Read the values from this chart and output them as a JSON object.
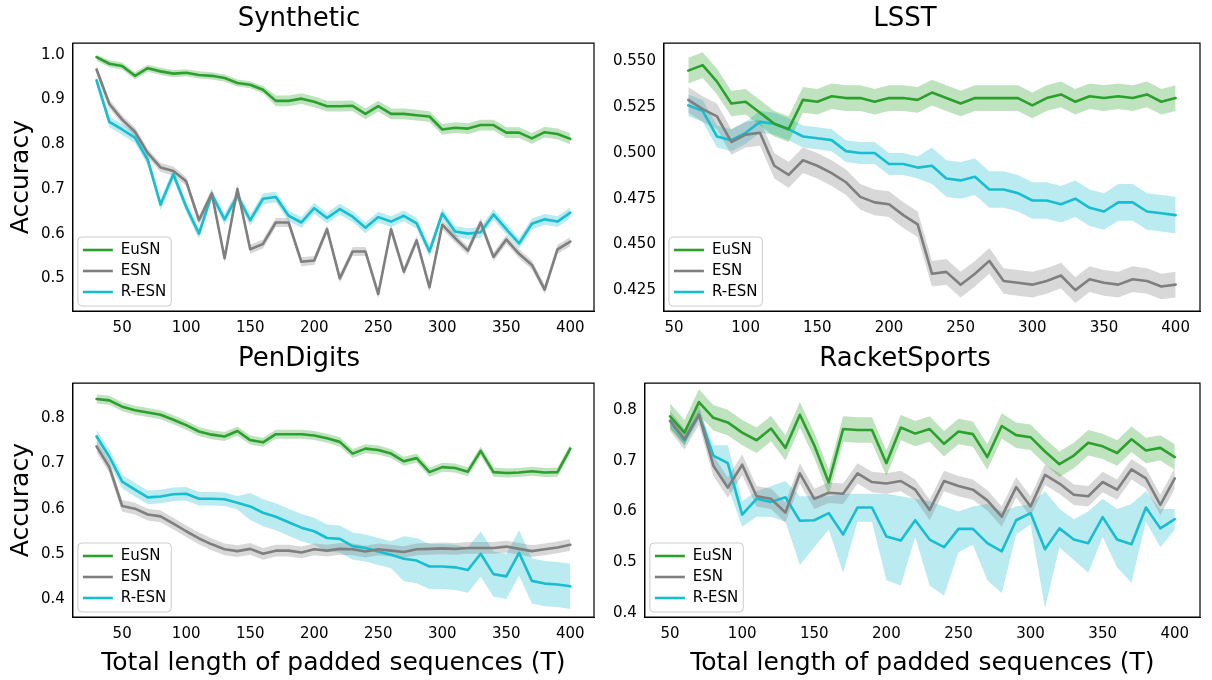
{
  "chart_data": [
    {
      "type": "line",
      "title": "Synthetic",
      "ylabel": "Accuracy",
      "legend": "bottom left",
      "grid": false,
      "marker": "none",
      "line_style": "solid",
      "x": [
        30,
        40,
        50,
        60,
        70,
        80,
        90,
        100,
        110,
        120,
        130,
        140,
        150,
        160,
        170,
        180,
        190,
        200,
        210,
        220,
        230,
        240,
        250,
        260,
        270,
        280,
        290,
        300,
        310,
        320,
        330,
        340,
        350,
        360,
        370,
        380,
        390,
        400
      ],
      "xlim": [
        11.5,
        418.5
      ],
      "xticks": [
        50,
        100,
        150,
        200,
        250,
        300,
        350,
        400
      ],
      "ylim": [
        0.427,
        1.026
      ],
      "yticks": [
        0.5,
        0.6,
        0.7,
        0.8,
        0.9,
        {
          "value": 1,
          "label": "1.0"
        }
      ],
      "series": [
        {
          "name": "EuSN",
          "color": "#2ca02c",
          "values": [
            0.995,
            0.98,
            0.975,
            0.953,
            0.97,
            0.963,
            0.958,
            0.96,
            0.955,
            0.953,
            0.948,
            0.937,
            0.933,
            0.922,
            0.897,
            0.897,
            0.902,
            0.895,
            0.885,
            0.885,
            0.886,
            0.868,
            0.885,
            0.868,
            0.868,
            0.865,
            0.862,
            0.833,
            0.837,
            0.835,
            0.843,
            0.843,
            0.826,
            0.826,
            0.813,
            0.827,
            0.823,
            0.812
          ],
          "lower": [
            0.987,
            0.972,
            0.967,
            0.945,
            0.962,
            0.955,
            0.95,
            0.952,
            0.947,
            0.945,
            0.94,
            0.929,
            0.925,
            0.914,
            0.885,
            0.885,
            0.89,
            0.883,
            0.873,
            0.873,
            0.874,
            0.856,
            0.873,
            0.856,
            0.856,
            0.853,
            0.85,
            0.821,
            0.825,
            0.823,
            0.831,
            0.831,
            0.814,
            0.814,
            0.801,
            0.815,
            0.811,
            0.8
          ],
          "upper": [
            1.0,
            0.988,
            0.983,
            0.961,
            0.978,
            0.971,
            0.966,
            0.968,
            0.963,
            0.961,
            0.956,
            0.945,
            0.941,
            0.93,
            0.909,
            0.909,
            0.914,
            0.907,
            0.897,
            0.897,
            0.898,
            0.88,
            0.897,
            0.88,
            0.88,
            0.877,
            0.874,
            0.845,
            0.849,
            0.847,
            0.855,
            0.855,
            0.838,
            0.838,
            0.825,
            0.839,
            0.835,
            0.824
          ]
        },
        {
          "name": "ESN",
          "color": "#7f7f7f",
          "values": [
            0.967,
            0.89,
            0.855,
            0.828,
            0.78,
            0.748,
            0.74,
            0.717,
            0.63,
            0.69,
            0.545,
            0.7,
            0.565,
            0.577,
            0.625,
            0.625,
            0.537,
            0.54,
            0.61,
            0.5,
            0.56,
            0.56,
            0.465,
            0.61,
            0.515,
            0.585,
            0.48,
            0.62,
            0.59,
            0.562,
            0.625,
            0.548,
            0.587,
            0.555,
            0.53,
            0.475,
            0.565,
            0.582
          ],
          "lower": [
            0.957,
            0.88,
            0.845,
            0.818,
            0.77,
            0.738,
            0.73,
            0.707,
            0.62,
            0.68,
            0.535,
            0.69,
            0.555,
            0.567,
            0.615,
            0.615,
            0.527,
            0.53,
            0.6,
            0.49,
            0.55,
            0.55,
            0.455,
            0.6,
            0.505,
            0.575,
            0.47,
            0.61,
            0.58,
            0.552,
            0.615,
            0.538,
            0.577,
            0.545,
            0.52,
            0.465,
            0.555,
            0.572
          ],
          "upper": [
            0.977,
            0.9,
            0.865,
            0.838,
            0.79,
            0.758,
            0.75,
            0.727,
            0.64,
            0.7,
            0.555,
            0.71,
            0.575,
            0.587,
            0.635,
            0.635,
            0.547,
            0.55,
            0.62,
            0.51,
            0.57,
            0.57,
            0.475,
            0.62,
            0.525,
            0.595,
            0.49,
            0.63,
            0.6,
            0.572,
            0.635,
            0.558,
            0.597,
            0.565,
            0.54,
            0.485,
            0.575,
            0.592
          ]
        },
        {
          "name": "R-ESN",
          "color": "#17becf",
          "values": [
            0.943,
            0.85,
            0.833,
            0.815,
            0.765,
            0.665,
            0.733,
            0.66,
            0.6,
            0.688,
            0.632,
            0.685,
            0.63,
            0.678,
            0.682,
            0.64,
            0.625,
            0.657,
            0.635,
            0.655,
            0.638,
            0.613,
            0.637,
            0.627,
            0.64,
            0.623,
            0.56,
            0.645,
            0.605,
            0.6,
            0.603,
            0.643,
            0.61,
            0.578,
            0.622,
            0.632,
            0.627,
            0.647
          ],
          "lower": [
            0.931,
            0.838,
            0.821,
            0.803,
            0.753,
            0.653,
            0.721,
            0.648,
            0.588,
            0.676,
            0.62,
            0.673,
            0.618,
            0.666,
            0.67,
            0.628,
            0.613,
            0.645,
            0.623,
            0.643,
            0.626,
            0.601,
            0.625,
            0.615,
            0.628,
            0.611,
            0.548,
            0.633,
            0.593,
            0.588,
            0.591,
            0.631,
            0.598,
            0.566,
            0.61,
            0.62,
            0.615,
            0.635
          ],
          "upper": [
            0.955,
            0.862,
            0.845,
            0.827,
            0.777,
            0.677,
            0.745,
            0.672,
            0.612,
            0.7,
            0.644,
            0.697,
            0.642,
            0.69,
            0.694,
            0.652,
            0.637,
            0.669,
            0.647,
            0.667,
            0.65,
            0.625,
            0.649,
            0.639,
            0.652,
            0.635,
            0.572,
            0.657,
            0.617,
            0.612,
            0.615,
            0.655,
            0.622,
            0.59,
            0.634,
            0.644,
            0.639,
            0.659
          ]
        }
      ]
    },
    {
      "type": "line",
      "title": "LSST",
      "legend": "bottom left",
      "grid": false,
      "marker": "none",
      "line_style": "solid",
      "x": [
        60,
        70,
        80,
        90,
        100,
        110,
        120,
        130,
        140,
        150,
        160,
        170,
        180,
        190,
        200,
        210,
        220,
        230,
        240,
        250,
        260,
        270,
        280,
        290,
        300,
        310,
        320,
        330,
        340,
        350,
        360,
        370,
        380,
        390,
        400
      ],
      "xlim": [
        43,
        417
      ],
      "xticks": [
        50,
        100,
        150,
        200,
        250,
        300,
        350,
        400
      ],
      "ylim": [
        0.4136,
        0.56
      ],
      "yticks": [
        0.425,
        {
          "value": 0.45,
          "label": "0.450"
        },
        0.475,
        {
          "value": 0.5,
          "label": "0.500"
        },
        0.525,
        {
          "value": 0.55,
          "label": "0.550"
        }
      ],
      "series": [
        {
          "name": "EuSN",
          "color": "#2ca02c",
          "values": [
            0.545,
            0.548,
            0.539,
            0.527,
            0.528,
            0.522,
            0.516,
            0.513,
            0.529,
            0.528,
            0.531,
            0.53,
            0.53,
            0.528,
            0.53,
            0.53,
            0.529,
            0.533,
            0.53,
            0.527,
            0.53,
            0.53,
            0.53,
            0.53,
            0.526,
            0.53,
            0.532,
            0.528,
            0.531,
            0.53,
            0.531,
            0.53,
            0.532,
            0.528,
            0.53
          ],
          "lower": [
            0.538,
            0.541,
            0.532,
            0.52,
            0.521,
            0.515,
            0.509,
            0.506,
            0.522,
            0.521,
            0.524,
            0.523,
            0.523,
            0.521,
            0.523,
            0.523,
            0.522,
            0.526,
            0.523,
            0.52,
            0.523,
            0.523,
            0.523,
            0.523,
            0.519,
            0.523,
            0.525,
            0.521,
            0.524,
            0.523,
            0.524,
            0.523,
            0.525,
            0.521,
            0.523
          ],
          "upper": [
            0.552,
            0.555,
            0.546,
            0.534,
            0.535,
            0.529,
            0.523,
            0.52,
            0.536,
            0.535,
            0.538,
            0.537,
            0.537,
            0.535,
            0.537,
            0.537,
            0.536,
            0.54,
            0.537,
            0.534,
            0.537,
            0.537,
            0.537,
            0.537,
            0.533,
            0.537,
            0.539,
            0.535,
            0.538,
            0.537,
            0.538,
            0.537,
            0.539,
            0.535,
            0.537
          ]
        },
        {
          "name": "ESN",
          "color": "#7f7f7f",
          "values": [
            0.529,
            0.524,
            0.52,
            0.506,
            0.51,
            0.511,
            0.493,
            0.488,
            0.496,
            0.493,
            0.489,
            0.484,
            0.476,
            0.473,
            0.472,
            0.466,
            0.461,
            0.434,
            0.435,
            0.428,
            0.434,
            0.441,
            0.43,
            0.429,
            0.428,
            0.43,
            0.433,
            0.425,
            0.431,
            0.429,
            0.428,
            0.431,
            0.43,
            0.427,
            0.428
          ],
          "lower": [
            0.522,
            0.517,
            0.513,
            0.499,
            0.503,
            0.504,
            0.486,
            0.481,
            0.489,
            0.486,
            0.482,
            0.477,
            0.469,
            0.466,
            0.465,
            0.459,
            0.454,
            0.427,
            0.428,
            0.421,
            0.427,
            0.434,
            0.423,
            0.422,
            0.421,
            0.423,
            0.426,
            0.418,
            0.424,
            0.422,
            0.421,
            0.424,
            0.423,
            0.42,
            0.421
          ],
          "upper": [
            0.536,
            0.531,
            0.527,
            0.513,
            0.517,
            0.518,
            0.5,
            0.495,
            0.503,
            0.5,
            0.496,
            0.491,
            0.483,
            0.48,
            0.479,
            0.473,
            0.468,
            0.441,
            0.442,
            0.435,
            0.441,
            0.448,
            0.437,
            0.436,
            0.435,
            0.437,
            0.44,
            0.432,
            0.438,
            0.436,
            0.435,
            0.438,
            0.437,
            0.434,
            0.435
          ]
        },
        {
          "name": "R-ESN",
          "color": "#17becf",
          "values": [
            0.526,
            0.523,
            0.509,
            0.507,
            0.511,
            0.517,
            0.516,
            0.513,
            0.509,
            0.508,
            0.507,
            0.501,
            0.5,
            0.5,
            0.494,
            0.494,
            0.492,
            0.493,
            0.486,
            0.485,
            0.487,
            0.48,
            0.48,
            0.478,
            0.474,
            0.474,
            0.472,
            0.475,
            0.47,
            0.468,
            0.473,
            0.473,
            0.468,
            0.467,
            0.466
          ],
          "lower": [
            0.52,
            0.517,
            0.503,
            0.501,
            0.505,
            0.511,
            0.51,
            0.507,
            0.503,
            0.502,
            0.501,
            0.495,
            0.494,
            0.494,
            0.488,
            0.488,
            0.486,
            0.483,
            0.476,
            0.475,
            0.477,
            0.47,
            0.47,
            0.468,
            0.464,
            0.464,
            0.462,
            0.465,
            0.46,
            0.458,
            0.463,
            0.463,
            0.458,
            0.457,
            0.456
          ],
          "upper": [
            0.532,
            0.529,
            0.515,
            0.513,
            0.517,
            0.523,
            0.522,
            0.519,
            0.515,
            0.514,
            0.513,
            0.507,
            0.506,
            0.506,
            0.5,
            0.5,
            0.498,
            0.503,
            0.496,
            0.495,
            0.497,
            0.49,
            0.49,
            0.488,
            0.484,
            0.484,
            0.482,
            0.485,
            0.48,
            0.478,
            0.483,
            0.483,
            0.478,
            0.477,
            0.476
          ]
        }
      ]
    },
    {
      "type": "line",
      "title": "PenDigits",
      "ylabel": "Accuracy",
      "xlabel": "Total length of padded sequences (T)",
      "legend": "bottom left",
      "grid": false,
      "marker": "none",
      "line_style": "solid",
      "x": [
        30,
        40,
        50,
        60,
        70,
        80,
        90,
        100,
        110,
        120,
        130,
        140,
        150,
        160,
        170,
        180,
        190,
        200,
        210,
        220,
        230,
        240,
        250,
        260,
        270,
        280,
        290,
        300,
        310,
        320,
        330,
        340,
        350,
        360,
        370,
        380,
        390,
        400
      ],
      "xlim": [
        11.5,
        418.5
      ],
      "xticks": [
        50,
        100,
        150,
        200,
        250,
        300,
        350,
        400
      ],
      "ylim": [
        0.36,
        0.878
      ],
      "yticks": [
        0.4,
        0.5,
        0.6,
        0.7,
        0.8
      ],
      "series": [
        {
          "name": "EuSN",
          "color": "#2ca02c",
          "values": [
            0.843,
            0.84,
            0.826,
            0.818,
            0.813,
            0.808,
            0.797,
            0.785,
            0.771,
            0.764,
            0.76,
            0.772,
            0.752,
            0.747,
            0.765,
            0.765,
            0.765,
            0.762,
            0.756,
            0.748,
            0.722,
            0.733,
            0.73,
            0.722,
            0.705,
            0.712,
            0.681,
            0.692,
            0.69,
            0.682,
            0.728,
            0.681,
            0.679,
            0.68,
            0.683,
            0.68,
            0.681,
            0.733
          ],
          "lower": [
            0.833,
            0.83,
            0.816,
            0.808,
            0.803,
            0.798,
            0.787,
            0.775,
            0.761,
            0.754,
            0.75,
            0.762,
            0.742,
            0.737,
            0.755,
            0.755,
            0.755,
            0.752,
            0.746,
            0.738,
            0.712,
            0.723,
            0.72,
            0.712,
            0.695,
            0.702,
            0.671,
            0.682,
            0.68,
            0.672,
            0.718,
            0.671,
            0.669,
            0.67,
            0.673,
            0.67,
            0.671,
            0.723
          ],
          "upper": [
            0.853,
            0.85,
            0.836,
            0.828,
            0.823,
            0.818,
            0.807,
            0.795,
            0.781,
            0.774,
            0.77,
            0.782,
            0.762,
            0.757,
            0.775,
            0.775,
            0.775,
            0.772,
            0.766,
            0.758,
            0.732,
            0.743,
            0.74,
            0.732,
            0.715,
            0.722,
            0.691,
            0.702,
            0.7,
            0.692,
            0.738,
            0.691,
            0.689,
            0.69,
            0.693,
            0.69,
            0.691,
            0.743
          ]
        },
        {
          "name": "ESN",
          "color": "#7f7f7f",
          "values": [
            0.738,
            0.692,
            0.606,
            0.6,
            0.587,
            0.583,
            0.567,
            0.55,
            0.534,
            0.521,
            0.51,
            0.506,
            0.511,
            0.5,
            0.507,
            0.507,
            0.503,
            0.51,
            0.507,
            0.511,
            0.51,
            0.505,
            0.51,
            0.507,
            0.504,
            0.51,
            0.511,
            0.512,
            0.511,
            0.513,
            0.513,
            0.513,
            0.516,
            0.511,
            0.506,
            0.51,
            0.514,
            0.52
          ],
          "lower": [
            0.725,
            0.679,
            0.593,
            0.587,
            0.574,
            0.57,
            0.554,
            0.537,
            0.521,
            0.508,
            0.497,
            0.493,
            0.498,
            0.487,
            0.494,
            0.494,
            0.49,
            0.497,
            0.494,
            0.498,
            0.497,
            0.492,
            0.497,
            0.494,
            0.491,
            0.497,
            0.498,
            0.499,
            0.498,
            0.5,
            0.5,
            0.5,
            0.503,
            0.498,
            0.493,
            0.497,
            0.501,
            0.507
          ],
          "upper": [
            0.751,
            0.705,
            0.619,
            0.613,
            0.6,
            0.596,
            0.58,
            0.563,
            0.547,
            0.534,
            0.523,
            0.519,
            0.524,
            0.513,
            0.52,
            0.52,
            0.516,
            0.523,
            0.52,
            0.524,
            0.523,
            0.518,
            0.523,
            0.52,
            0.517,
            0.523,
            0.524,
            0.525,
            0.524,
            0.526,
            0.526,
            0.526,
            0.529,
            0.524,
            0.519,
            0.523,
            0.527,
            0.533
          ]
        },
        {
          "name": "R-ESN",
          "color": "#17becf",
          "values": [
            0.76,
            0.715,
            0.66,
            0.642,
            0.625,
            0.627,
            0.632,
            0.633,
            0.622,
            0.622,
            0.621,
            0.613,
            0.605,
            0.591,
            0.582,
            0.57,
            0.558,
            0.55,
            0.535,
            0.533,
            0.517,
            0.513,
            0.505,
            0.498,
            0.489,
            0.485,
            0.472,
            0.472,
            0.47,
            0.464,
            0.5,
            0.455,
            0.45,
            0.502,
            0.44,
            0.434,
            0.432,
            0.428
          ],
          "lower": [
            0.745,
            0.7,
            0.645,
            0.627,
            0.61,
            0.612,
            0.617,
            0.618,
            0.607,
            0.607,
            0.606,
            0.598,
            0.575,
            0.561,
            0.552,
            0.54,
            0.528,
            0.52,
            0.505,
            0.503,
            0.487,
            0.483,
            0.475,
            0.468,
            0.439,
            0.435,
            0.422,
            0.422,
            0.42,
            0.414,
            0.45,
            0.405,
            0.4,
            0.452,
            0.39,
            0.384,
            0.382,
            0.378
          ],
          "upper": [
            0.775,
            0.73,
            0.675,
            0.657,
            0.64,
            0.642,
            0.647,
            0.648,
            0.637,
            0.637,
            0.636,
            0.628,
            0.635,
            0.621,
            0.612,
            0.6,
            0.588,
            0.58,
            0.565,
            0.563,
            0.547,
            0.543,
            0.535,
            0.528,
            0.539,
            0.535,
            0.522,
            0.522,
            0.52,
            0.514,
            0.55,
            0.505,
            0.5,
            0.552,
            0.49,
            0.484,
            0.482,
            0.478
          ]
        }
      ]
    },
    {
      "type": "line",
      "title": "RacketSports",
      "xlabel": "Total length of padded sequences (T)",
      "legend": "bottom left",
      "grid": false,
      "marker": "none",
      "line_style": "solid",
      "x": [
        50,
        60,
        70,
        80,
        90,
        100,
        110,
        120,
        130,
        140,
        150,
        160,
        170,
        180,
        190,
        200,
        210,
        220,
        230,
        240,
        250,
        260,
        270,
        280,
        290,
        300,
        310,
        320,
        330,
        340,
        350,
        360,
        370,
        380,
        390,
        400
      ],
      "xlim": [
        32.5,
        417.5
      ],
      "xticks": [
        50,
        100,
        150,
        200,
        250,
        300,
        350,
        400
      ],
      "ylim": [
        0.393,
        0.852
      ],
      "yticks": [
        0.4,
        0.5,
        0.6,
        0.7,
        0.8
      ],
      "series": [
        {
          "name": "EuSN",
          "color": "#2ca02c",
          "values": [
            0.787,
            0.755,
            0.815,
            0.784,
            0.775,
            0.755,
            0.74,
            0.763,
            0.725,
            0.79,
            0.73,
            0.657,
            0.762,
            0.76,
            0.76,
            0.695,
            0.765,
            0.753,
            0.762,
            0.733,
            0.757,
            0.752,
            0.707,
            0.768,
            0.75,
            0.746,
            0.718,
            0.693,
            0.71,
            0.735,
            0.728,
            0.715,
            0.742,
            0.72,
            0.725,
            0.707
          ],
          "lower": [
            0.762,
            0.73,
            0.79,
            0.759,
            0.75,
            0.73,
            0.715,
            0.738,
            0.7,
            0.765,
            0.705,
            0.632,
            0.737,
            0.735,
            0.735,
            0.67,
            0.74,
            0.728,
            0.737,
            0.708,
            0.732,
            0.727,
            0.682,
            0.743,
            0.725,
            0.721,
            0.693,
            0.668,
            0.685,
            0.71,
            0.703,
            0.69,
            0.717,
            0.695,
            0.7,
            0.682
          ],
          "upper": [
            0.812,
            0.78,
            0.84,
            0.809,
            0.8,
            0.78,
            0.765,
            0.788,
            0.75,
            0.815,
            0.755,
            0.682,
            0.787,
            0.785,
            0.785,
            0.72,
            0.79,
            0.778,
            0.787,
            0.758,
            0.782,
            0.777,
            0.732,
            0.793,
            0.775,
            0.771,
            0.743,
            0.718,
            0.735,
            0.76,
            0.753,
            0.74,
            0.767,
            0.745,
            0.75,
            0.732
          ]
        },
        {
          "name": "ESN",
          "color": "#7f7f7f",
          "values": [
            0.778,
            0.742,
            0.79,
            0.69,
            0.647,
            0.692,
            0.63,
            0.625,
            0.598,
            0.675,
            0.625,
            0.637,
            0.635,
            0.675,
            0.658,
            0.655,
            0.66,
            0.643,
            0.603,
            0.66,
            0.65,
            0.643,
            0.622,
            0.59,
            0.648,
            0.61,
            0.672,
            0.655,
            0.633,
            0.63,
            0.658,
            0.643,
            0.683,
            0.665,
            0.613,
            0.665
          ],
          "lower": [
            0.758,
            0.722,
            0.77,
            0.67,
            0.627,
            0.672,
            0.61,
            0.605,
            0.578,
            0.655,
            0.605,
            0.617,
            0.615,
            0.655,
            0.638,
            0.635,
            0.64,
            0.623,
            0.583,
            0.64,
            0.63,
            0.623,
            0.602,
            0.57,
            0.628,
            0.59,
            0.652,
            0.635,
            0.613,
            0.61,
            0.638,
            0.623,
            0.663,
            0.645,
            0.593,
            0.645
          ],
          "upper": [
            0.798,
            0.762,
            0.81,
            0.71,
            0.667,
            0.712,
            0.65,
            0.645,
            0.618,
            0.695,
            0.645,
            0.657,
            0.655,
            0.695,
            0.678,
            0.675,
            0.68,
            0.663,
            0.623,
            0.68,
            0.67,
            0.663,
            0.642,
            0.61,
            0.668,
            0.63,
            0.692,
            0.675,
            0.653,
            0.65,
            0.678,
            0.663,
            0.703,
            0.685,
            0.633,
            0.685
          ]
        },
        {
          "name": "R-ESN",
          "color": "#17becf",
          "values": [
            0.778,
            0.74,
            0.79,
            0.71,
            0.695,
            0.594,
            0.625,
            0.619,
            0.628,
            0.582,
            0.583,
            0.597,
            0.555,
            0.608,
            0.608,
            0.551,
            0.543,
            0.583,
            0.545,
            0.53,
            0.566,
            0.566,
            0.538,
            0.522,
            0.583,
            0.597,
            0.526,
            0.567,
            0.545,
            0.538,
            0.589,
            0.545,
            0.536,
            0.608,
            0.567,
            0.585
          ],
          "lower": [
            0.765,
            0.73,
            0.78,
            0.69,
            0.65,
            0.57,
            0.59,
            0.59,
            0.58,
            0.495,
            0.53,
            0.565,
            0.48,
            0.58,
            0.58,
            0.465,
            0.455,
            0.55,
            0.455,
            0.435,
            0.52,
            0.535,
            0.465,
            0.44,
            0.555,
            0.575,
            0.41,
            0.53,
            0.505,
            0.48,
            0.55,
            0.49,
            0.46,
            0.58,
            0.53,
            0.565
          ],
          "upper": [
            0.79,
            0.75,
            0.8,
            0.73,
            0.73,
            0.62,
            0.64,
            0.65,
            0.66,
            0.63,
            0.63,
            0.63,
            0.635,
            0.635,
            0.635,
            0.635,
            0.63,
            0.625,
            0.62,
            0.61,
            0.6,
            0.61,
            0.615,
            0.6,
            0.61,
            0.615,
            0.64,
            0.605,
            0.585,
            0.6,
            0.625,
            0.605,
            0.615,
            0.64,
            0.605,
            0.605
          ]
        }
      ]
    }
  ]
}
